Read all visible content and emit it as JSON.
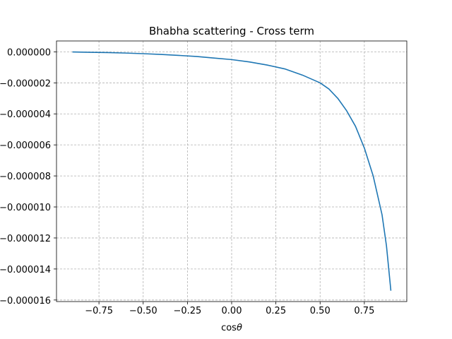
{
  "chart_data": {
    "type": "line",
    "title": "Bhabha scattering - Cross term",
    "xlabel": "cosθ",
    "xlabel_parts": {
      "prefix": "cos",
      "symbol": "θ"
    },
    "ylabel": "",
    "xlim": [
      -0.99,
      0.99
    ],
    "ylim": [
      -1.61e-05,
      7e-07
    ],
    "xticks": [
      -0.75,
      -0.5,
      -0.25,
      0.0,
      0.25,
      0.5,
      0.75
    ],
    "xtick_labels": [
      "−0.75",
      "−0.50",
      "−0.25",
      "0.00",
      "0.25",
      "0.50",
      "0.75"
    ],
    "yticks": [
      0,
      -2e-06,
      -4e-06,
      -6e-06,
      -8e-06,
      -1e-05,
      -1.2e-05,
      -1.4e-05,
      -1.6e-05
    ],
    "ytick_labels": [
      "0.000000",
      "−0.000002",
      "−0.000004",
      "−0.000006",
      "−0.000008",
      "−0.000010",
      "−0.000012",
      "−0.000014",
      "−0.000016"
    ],
    "grid": true,
    "legend": false,
    "series": [
      {
        "color": "#1f77b4",
        "x": [
          -0.9,
          -0.8,
          -0.7,
          -0.6,
          -0.5,
          -0.4,
          -0.3,
          -0.2,
          -0.1,
          0.0,
          0.1,
          0.2,
          0.3,
          0.4,
          0.5,
          0.55,
          0.6,
          0.65,
          0.7,
          0.75,
          0.8,
          0.85,
          0.875,
          0.9
        ],
        "y": [
          -1e-08,
          -3e-08,
          -5e-08,
          -8e-08,
          -1.2e-07,
          -1.7e-07,
          -2.3e-07,
          -3e-07,
          -4e-07,
          -5e-07,
          -6.5e-07,
          -8.5e-07,
          -1.1e-06,
          -1.5e-06,
          -2e-06,
          -2.4e-06,
          -3e-06,
          -3.8e-06,
          -4.8e-06,
          -6.2e-06,
          -8e-06,
          -1.05e-05,
          -1.25e-05,
          -1.54e-05
        ]
      }
    ]
  }
}
